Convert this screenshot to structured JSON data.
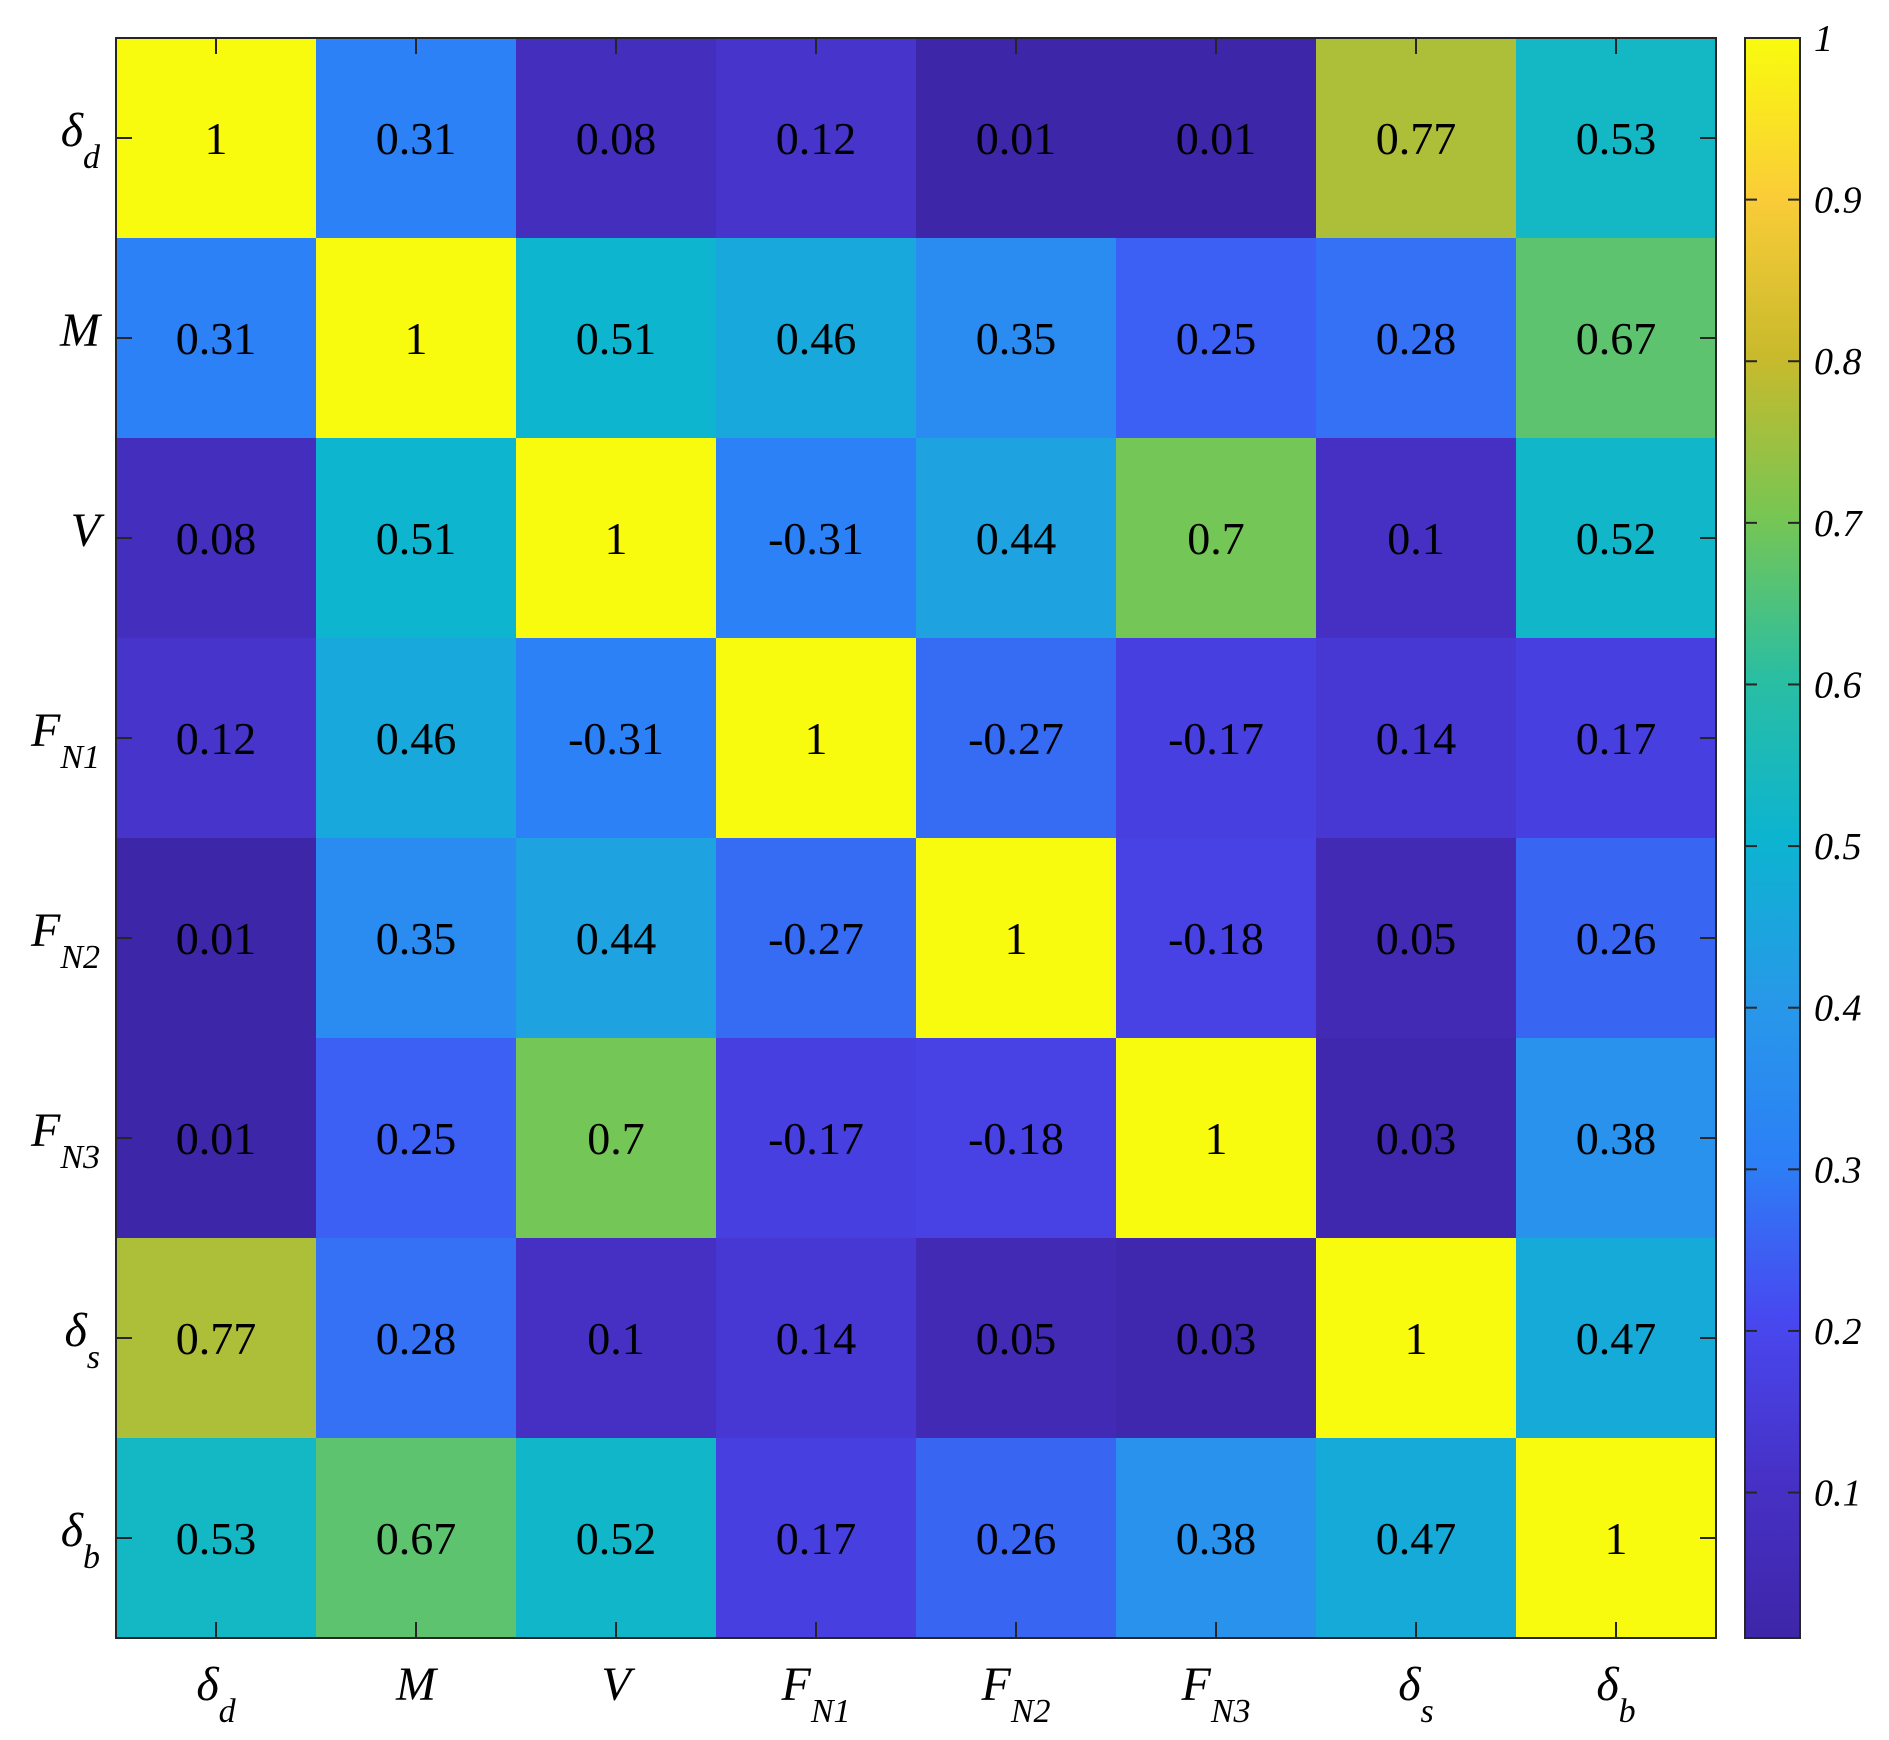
{
  "chart_data": {
    "type": "heatmap",
    "title": "",
    "labels": [
      {
        "base": "δ",
        "sub": "d"
      },
      {
        "base": "M",
        "sub": ""
      },
      {
        "base": "V",
        "sub": ""
      },
      {
        "base": "F",
        "sub": "N1"
      },
      {
        "base": "F",
        "sub": "N2"
      },
      {
        "base": "F",
        "sub": "N3"
      },
      {
        "base": "δ",
        "sub": "s"
      },
      {
        "base": "δ",
        "sub": "b"
      }
    ],
    "matrix": [
      [
        1,
        0.31,
        0.08,
        0.12,
        0.01,
        0.01,
        0.77,
        0.53
      ],
      [
        0.31,
        1,
        0.51,
        0.46,
        0.35,
        0.25,
        0.28,
        0.67
      ],
      [
        0.08,
        0.51,
        1,
        -0.31,
        0.44,
        0.7,
        0.1,
        0.52
      ],
      [
        0.12,
        0.46,
        -0.31,
        1,
        -0.27,
        -0.17,
        0.14,
        0.17
      ],
      [
        0.01,
        0.35,
        0.44,
        -0.27,
        1,
        -0.18,
        0.05,
        0.26
      ],
      [
        0.01,
        0.25,
        0.7,
        -0.17,
        -0.18,
        1,
        0.03,
        0.38
      ],
      [
        0.77,
        0.28,
        0.1,
        0.14,
        0.05,
        0.03,
        1,
        0.47
      ],
      [
        0.53,
        0.67,
        0.52,
        0.17,
        0.26,
        0.38,
        0.47,
        1
      ]
    ],
    "colormap": "parula",
    "colorbar": {
      "range": [
        0.01,
        1
      ],
      "ticks": [
        0.1,
        0.2,
        0.3,
        0.4,
        0.5,
        0.6,
        0.7,
        0.8,
        0.9,
        1
      ],
      "tick_labels": [
        "0.1",
        "0.2",
        "0.3",
        "0.4",
        "0.5",
        "0.6",
        "0.7",
        "0.8",
        "0.9",
        "1"
      ]
    },
    "note_color_of_negatives": "blue (absolute value shading)"
  }
}
